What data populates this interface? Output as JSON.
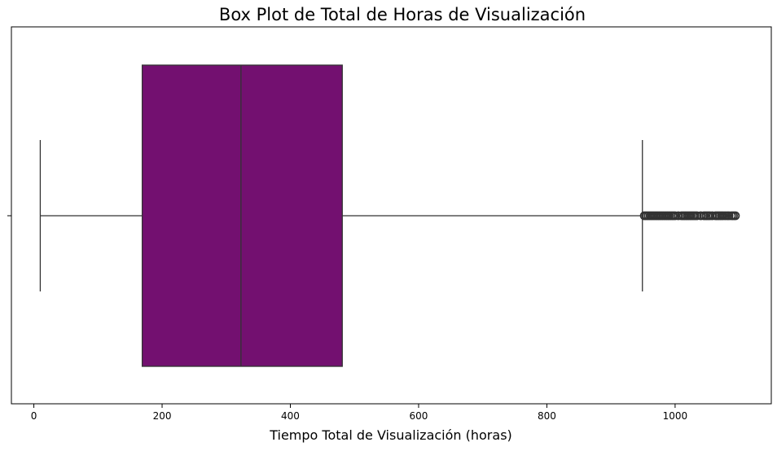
{
  "chart_data": {
    "type": "box",
    "orientation": "horizontal",
    "title": "Box Plot de Total de Horas de Visualización",
    "xlabel": "Tiempo Total de Visualización (horas)",
    "ylabel": "",
    "xlim": [
      -35,
      1150
    ],
    "xticks": [
      0,
      200,
      400,
      600,
      800,
      1000
    ],
    "grid": false,
    "box_color": "#731070",
    "line_color": "#333333",
    "box": {
      "whisker_low": 10,
      "q1": 169,
      "median": 323,
      "q3": 481,
      "whisker_high": 949
    },
    "outliers": [
      952,
      955,
      958,
      961,
      964,
      967,
      970,
      973,
      976,
      979,
      982,
      985,
      988,
      991,
      994,
      997,
      1000,
      1005,
      1010,
      1013,
      1016,
      1019,
      1022,
      1025,
      1028,
      1031,
      1034,
      1040,
      1045,
      1048,
      1051,
      1054,
      1058,
      1063,
      1066,
      1069,
      1072,
      1075,
      1078,
      1081,
      1084,
      1088,
      1091,
      1094
    ]
  }
}
